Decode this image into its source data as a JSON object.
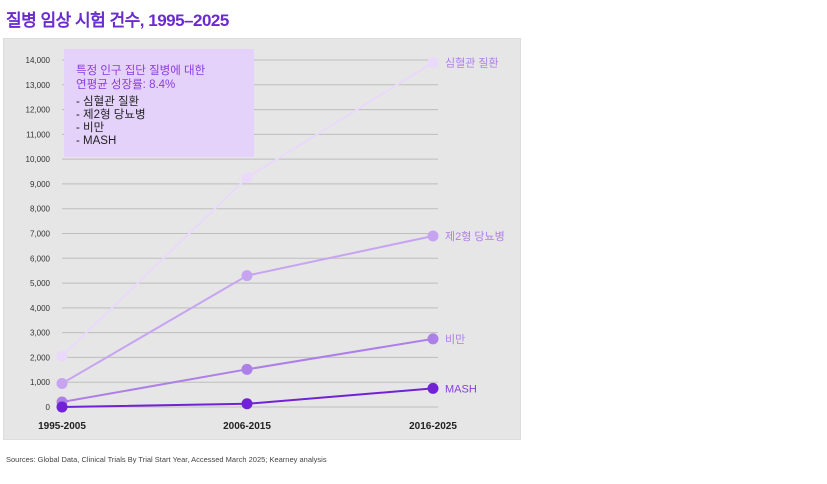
{
  "title": "질병 임상 시험 건수, 1995–2025",
  "note": {
    "heading_line1": "특정 인구 집단 질병에 대한",
    "heading_line2": "연평균 성장률: 8.4%",
    "items": [
      "심혈관 질환",
      "제2형 당뇨병",
      "비만",
      "MASH"
    ]
  },
  "source": "Sources: Global Data, Clinical Trials By Trial Start Year, Accessed March 2025; Kearney analysis",
  "chart_data": {
    "type": "line",
    "title": "질병 임상 시험 건수, 1995–2025",
    "categories": [
      "1995-2005",
      "2006-2015",
      "2016-2025"
    ],
    "ylim": [
      0,
      14000
    ],
    "yticks": [
      0,
      1000,
      2000,
      3000,
      4000,
      5000,
      6000,
      7000,
      8000,
      9000,
      10000,
      11000,
      12000,
      13000,
      14000
    ],
    "ytick_labels": [
      "0",
      "1,000",
      "2,000",
      "3,000",
      "4,000",
      "5,000",
      "6,000",
      "7,000",
      "8,000",
      "9,000",
      "10,000",
      "11,000",
      "12,000",
      "13,000",
      "14,000"
    ],
    "grid": true,
    "series": [
      {
        "name": "심혈관 질환",
        "values": [
          2050,
          9250,
          13900
        ],
        "color": "#ead9fb"
      },
      {
        "name": "제2형 당뇨병",
        "values": [
          950,
          5300,
          6900
        ],
        "color": "#c7a4f2"
      },
      {
        "name": "비만",
        "values": [
          200,
          1520,
          2750
        ],
        "color": "#ad7fe8"
      },
      {
        "name": "MASH",
        "values": [
          0,
          130,
          750
        ],
        "color": "#7222d6"
      }
    ]
  }
}
